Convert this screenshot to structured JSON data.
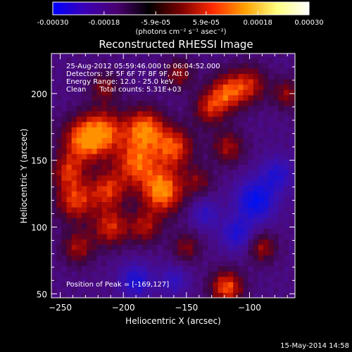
{
  "colorbar": {
    "tick_labels": [
      "-0.00030",
      "-0.00018",
      "-5.9e-05",
      "5.9e-05",
      "0.00018",
      "0.00030"
    ],
    "tick_values": [
      -0.0003,
      -0.00018,
      -5.9e-05,
      5.9e-05,
      0.00018,
      0.0003
    ],
    "range": [
      -0.0003,
      0.0003
    ],
    "unit_label": "(photons cm⁻² s⁻¹ asec⁻²)",
    "colors": [
      "#0000ff",
      "#3b00b5",
      "#4a0070",
      "#000000",
      "#7a0000",
      "#ff2a00",
      "#ffa000",
      "#ffff80",
      "#ffffff"
    ]
  },
  "chart_data": {
    "type": "heatmap",
    "title": "Reconstructed RHESSI Image",
    "xlabel": "Heliocentric X (arcsec)",
    "ylabel": "Heliocentric Y (arcsec)",
    "xlim": [
      -257,
      -64
    ],
    "ylim": [
      47,
      230
    ],
    "x_ticks": [
      -250,
      -200,
      -150,
      -100
    ],
    "x_tick_labels": [
      "−250",
      "−200",
      "−150",
      "−100"
    ],
    "y_ticks": [
      50,
      100,
      150,
      200
    ],
    "y_tick_labels": [
      "50",
      "100",
      "150",
      "200"
    ],
    "peak": [
      -169,
      127
    ],
    "hot_spots": [
      {
        "x": -232,
        "y": 165,
        "i": 0.85,
        "r": 12
      },
      {
        "x": -215,
        "y": 172,
        "i": 0.75,
        "r": 12
      },
      {
        "x": -183,
        "y": 174,
        "i": 0.9,
        "r": 11
      },
      {
        "x": -190,
        "y": 148,
        "i": 0.8,
        "r": 12
      },
      {
        "x": -160,
        "y": 160,
        "i": 0.8,
        "r": 11
      },
      {
        "x": -169,
        "y": 127,
        "i": 1.0,
        "r": 12
      },
      {
        "x": -238,
        "y": 120,
        "i": 0.75,
        "r": 11
      },
      {
        "x": -212,
        "y": 128,
        "i": 0.7,
        "r": 10
      },
      {
        "x": -244,
        "y": 142,
        "i": 0.6,
        "r": 9
      },
      {
        "x": -210,
        "y": 100,
        "i": 0.7,
        "r": 10
      },
      {
        "x": -236,
        "y": 85,
        "i": 0.55,
        "r": 9
      },
      {
        "x": -183,
        "y": 100,
        "i": 0.55,
        "r": 9
      },
      {
        "x": -118,
        "y": 201,
        "i": 0.75,
        "r": 10
      },
      {
        "x": -132,
        "y": 189,
        "i": 0.6,
        "r": 9
      },
      {
        "x": -100,
        "y": 207,
        "i": 0.6,
        "r": 10
      },
      {
        "x": -117,
        "y": 160,
        "i": 0.55,
        "r": 9
      },
      {
        "x": -118,
        "y": 55,
        "i": 0.85,
        "r": 9
      },
      {
        "x": -90,
        "y": 85,
        "i": 0.55,
        "r": 8
      },
      {
        "x": -156,
        "y": 215,
        "i": 0.5,
        "r": 8
      },
      {
        "x": -215,
        "y": 205,
        "i": 0.45,
        "r": 8
      },
      {
        "x": -150,
        "y": 85,
        "i": 0.45,
        "r": 8
      },
      {
        "x": -70,
        "y": 200,
        "i": 0.5,
        "r": 8
      },
      {
        "x": -140,
        "y": 135,
        "i": 0.4,
        "r": 8
      }
    ],
    "cold_spots": [
      {
        "x": -95,
        "y": 120,
        "i": 0.85,
        "r": 11
      },
      {
        "x": -110,
        "y": 95,
        "i": 0.6,
        "r": 9
      },
      {
        "x": -78,
        "y": 140,
        "i": 0.55,
        "r": 9
      },
      {
        "x": -190,
        "y": 60,
        "i": 0.65,
        "r": 9
      },
      {
        "x": -160,
        "y": 60,
        "i": 0.45,
        "r": 8
      },
      {
        "x": -135,
        "y": 110,
        "i": 0.45,
        "r": 8
      }
    ]
  },
  "annotations": {
    "line1": "25-Aug-2012 05:59:46.000 to 06:04:52.000",
    "line2": "Detectors: 3F 5F 6F 7F 8F 9F, Att 0",
    "line3": "Energy Range: 12.0 - 25.0 keV",
    "line4": "Clean      Total counts: 5.31E+03",
    "peak_text": "Position of Peak = [-169,127]"
  },
  "footer_date": "15-May-2014 14:58"
}
